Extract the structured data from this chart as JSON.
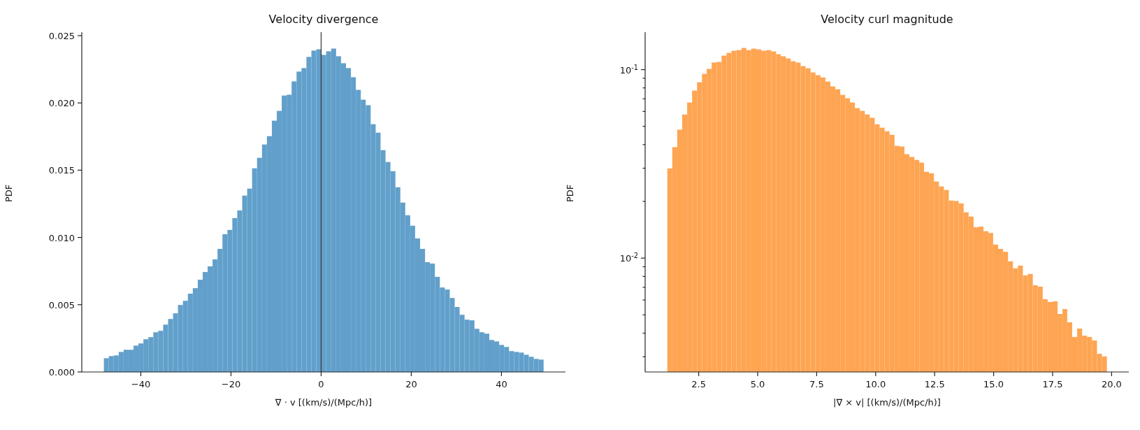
{
  "chart_data": [
    {
      "type": "histogram",
      "title": "Velocity divergence",
      "xlabel": "∇ · v [(km/s)/(Mpc/h)]",
      "ylabel": "PDF",
      "color": "#62a0cb",
      "bins": [
        -48.2,
        -47.1,
        -46.01,
        -44.91,
        -43.82,
        -42.72,
        -41.62,
        -40.53,
        -39.43,
        -38.34,
        -37.24,
        -36.14,
        -35.05,
        -33.95,
        -32.85,
        -31.76,
        -30.66,
        -29.57,
        -28.47,
        -27.37,
        -26.28,
        -25.18,
        -24.09,
        -22.99,
        -21.89,
        -20.8,
        -19.7,
        -18.61,
        -17.51,
        -16.41,
        -15.32,
        -14.22,
        -13.12,
        -12.03,
        -10.93,
        -9.84,
        -8.74,
        -7.64,
        -6.55,
        -5.45,
        -4.36,
        -3.26,
        -2.16,
        -1.07,
        0.03,
        1.12,
        2.22,
        3.32,
        4.41,
        5.51,
        6.61,
        7.7,
        8.8,
        9.89,
        10.99,
        12.09,
        13.18,
        14.28,
        15.37,
        16.47,
        17.57,
        18.66,
        19.76,
        20.85,
        21.95,
        23.05,
        24.14,
        25.24,
        26.34,
        27.43,
        28.53,
        29.62,
        30.72,
        31.82,
        32.91,
        34.01,
        35.1,
        36.2,
        37.3,
        38.39,
        39.49,
        40.58,
        41.68,
        42.78,
        43.87,
        44.97,
        46.07,
        47.16,
        48.26,
        49.35
      ],
      "values": [
        0.00102,
        0.00118,
        0.00123,
        0.00149,
        0.00165,
        0.00165,
        0.00196,
        0.00212,
        0.00243,
        0.00259,
        0.00295,
        0.00306,
        0.00352,
        0.00394,
        0.00436,
        0.00498,
        0.00529,
        0.00582,
        0.00623,
        0.00686,
        0.00743,
        0.00785,
        0.00837,
        0.00915,
        0.01024,
        0.01056,
        0.01144,
        0.01201,
        0.01311,
        0.01363,
        0.01514,
        0.01592,
        0.01691,
        0.01753,
        0.01868,
        0.01941,
        0.02055,
        0.02061,
        0.0216,
        0.02233,
        0.02259,
        0.02342,
        0.02389,
        0.02399,
        0.02357,
        0.02384,
        0.02404,
        0.02347,
        0.02295,
        0.02259,
        0.02191,
        0.02097,
        0.02024,
        0.01983,
        0.01842,
        0.01779,
        0.01649,
        0.01561,
        0.01493,
        0.01373,
        0.01259,
        0.01165,
        0.01087,
        0.00993,
        0.00915,
        0.00816,
        0.00806,
        0.00707,
        0.00628,
        0.00613,
        0.0055,
        0.00483,
        0.00425,
        0.00389,
        0.00384,
        0.00321,
        0.00295,
        0.00285,
        0.00238,
        0.00227,
        0.00201,
        0.00186,
        0.00155,
        0.00149,
        0.00144,
        0.00128,
        0.00113,
        0.00097,
        0.00092
      ],
      "xlim": [
        -53.1,
        54.2
      ],
      "ylim": [
        0,
        0.02526
      ],
      "xticks": [
        {
          "value": -40,
          "label": "−40"
        },
        {
          "value": -20,
          "label": "−20"
        },
        0,
        20,
        40
      ],
      "yticks": [
        {
          "value": 0,
          "label": "0.000"
        },
        {
          "value": 0.005,
          "label": "0.005"
        },
        {
          "value": 0.01,
          "label": "0.010"
        },
        {
          "value": 0.015,
          "label": "0.015"
        },
        {
          "value": 0.02,
          "label": "0.020"
        },
        {
          "value": 0.025,
          "label": "0.025"
        }
      ],
      "ref_lines": [
        {
          "axis": "x",
          "value": 0,
          "color": "#333333"
        }
      ]
    },
    {
      "type": "histogram",
      "title": "Velocity curl magnitude",
      "xlabel": "|∇ × v| [(km/s)/(Mpc/h)]",
      "ylabel": "PDF",
      "color": "#fea553",
      "log": true,
      "bins": [
        1.17,
        1.38,
        1.59,
        1.8,
        2.01,
        2.22,
        2.43,
        2.64,
        2.84,
        3.05,
        3.26,
        3.47,
        3.68,
        3.89,
        4.1,
        4.31,
        4.52,
        4.73,
        4.94,
        5.15,
        5.36,
        5.57,
        5.78,
        5.98,
        6.19,
        6.4,
        6.61,
        6.82,
        7.03,
        7.24,
        7.45,
        7.66,
        7.87,
        8.08,
        8.29,
        8.5,
        8.71,
        8.91,
        9.12,
        9.33,
        9.54,
        9.75,
        9.96,
        10.17,
        10.38,
        10.59,
        10.8,
        11.01,
        11.22,
        11.43,
        11.64,
        11.85,
        12.05,
        12.26,
        12.47,
        12.68,
        12.89,
        13.1,
        13.31,
        13.52,
        13.73,
        13.94,
        14.15,
        14.36,
        14.57,
        14.78,
        14.98,
        15.19,
        15.4,
        15.61,
        15.82,
        16.03,
        16.24,
        16.45,
        16.66,
        16.87,
        17.08,
        17.29,
        17.5,
        17.71,
        17.92,
        18.12,
        18.33,
        18.54,
        18.75,
        18.96,
        19.17,
        19.38,
        19.59,
        19.8
      ],
      "values": [
        0.0299,
        0.0388,
        0.048,
        0.0578,
        0.0669,
        0.0774,
        0.0857,
        0.095,
        0.1009,
        0.109,
        0.1099,
        0.1186,
        0.1227,
        0.1259,
        0.1269,
        0.1303,
        0.1269,
        0.1292,
        0.1281,
        0.1259,
        0.1269,
        0.1249,
        0.1207,
        0.1177,
        0.1146,
        0.1108,
        0.109,
        0.1044,
        0.1017,
        0.0966,
        0.0934,
        0.0909,
        0.0864,
        0.0814,
        0.0787,
        0.0735,
        0.0705,
        0.0669,
        0.0625,
        0.0604,
        0.0578,
        0.0555,
        0.0513,
        0.0492,
        0.0471,
        0.0451,
        0.0394,
        0.0391,
        0.0356,
        0.0344,
        0.0332,
        0.0321,
        0.0287,
        0.0282,
        0.0255,
        0.024,
        0.023,
        0.0202,
        0.0201,
        0.0195,
        0.0175,
        0.0166,
        0.0146,
        0.0147,
        0.0139,
        0.0136,
        0.0118,
        0.0112,
        0.0108,
        0.00962,
        0.00883,
        0.00913,
        0.0081,
        0.00824,
        0.00718,
        0.00706,
        0.00605,
        0.00585,
        0.0059,
        0.00506,
        0.00537,
        0.00457,
        0.00382,
        0.00423,
        0.00388,
        0.00382,
        0.00366,
        0.00311,
        0.00301
      ],
      "xlim": [
        0.23,
        20.73
      ],
      "ylim": [
        0.00249,
        0.158
      ],
      "xticks": [
        2.5,
        {
          "value": 5,
          "label": "5.0"
        },
        7.5,
        {
          "value": 10,
          "label": "10.0"
        },
        12.5,
        {
          "value": 15,
          "label": "15.0"
        },
        17.5,
        {
          "value": 20,
          "label": "20.0"
        }
      ],
      "yticks": [
        {
          "value": 0.003,
          "label": null
        },
        {
          "value": 0.004,
          "label": null
        },
        {
          "value": 0.005,
          "label": null
        },
        {
          "value": 0.006,
          "label": null
        },
        {
          "value": 0.007,
          "label": null
        },
        {
          "value": 0.008,
          "label": null
        },
        {
          "value": 0.009,
          "label": null
        },
        {
          "value": 0.01,
          "label": "10$^{-2}$"
        },
        {
          "value": 0.02,
          "label": null
        },
        {
          "value": 0.03,
          "label": null
        },
        {
          "value": 0.04,
          "label": null
        },
        {
          "value": 0.05,
          "label": null
        },
        {
          "value": 0.06,
          "label": null
        },
        {
          "value": 0.07,
          "label": null
        },
        {
          "value": 0.08,
          "label": null
        },
        {
          "value": 0.09,
          "label": null
        },
        {
          "value": 0.1,
          "label": "10$^{-1}$"
        }
      ]
    }
  ]
}
